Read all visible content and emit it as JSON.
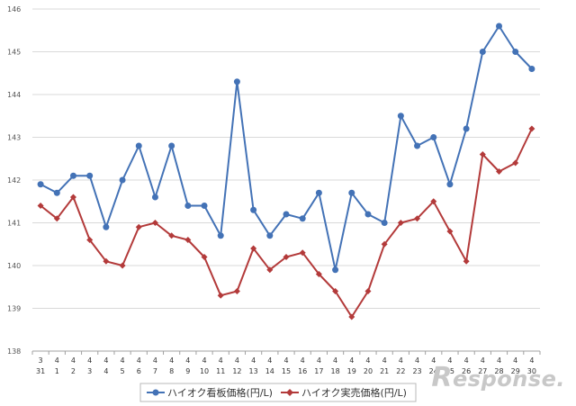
{
  "chart_data": {
    "type": "line",
    "title": "",
    "xlabel": "",
    "ylabel": "",
    "ylim": [
      138,
      146
    ],
    "y_ticks": [
      "138",
      "139",
      "140",
      "141",
      "142",
      "143",
      "144",
      "145",
      "146"
    ],
    "grid": true,
    "legend_position": "bottom-center",
    "x_months": [
      "3",
      "4",
      "4",
      "4",
      "4",
      "4",
      "4",
      "4",
      "4",
      "4",
      "4",
      "4",
      "4",
      "4",
      "4",
      "4",
      "4",
      "4",
      "4",
      "4",
      "4",
      "4",
      "4",
      "4",
      "4",
      "4",
      "4",
      "4",
      "4",
      "4",
      "4"
    ],
    "x_days": [
      "31",
      "1",
      "2",
      "3",
      "4",
      "5",
      "6",
      "7",
      "8",
      "9",
      "10",
      "11",
      "12",
      "13",
      "14",
      "15",
      "16",
      "17",
      "18",
      "19",
      "20",
      "21",
      "22",
      "23",
      "24",
      "25",
      "26",
      "27",
      "28",
      "29",
      "30"
    ],
    "series": [
      {
        "name": "ハイオク看板価格(円/L)",
        "color": "#4372b6",
        "marker": "circle",
        "values": [
          141.9,
          141.7,
          142.1,
          142.1,
          140.9,
          142.0,
          142.8,
          141.6,
          142.8,
          141.4,
          141.4,
          140.7,
          144.3,
          141.3,
          140.7,
          141.2,
          141.1,
          141.7,
          139.9,
          141.7,
          141.2,
          141.0,
          143.5,
          142.8,
          143.0,
          141.9,
          143.2,
          145.0,
          145.6,
          145.0,
          144.6
        ]
      },
      {
        "name": "ハイオク実売価格(円/L)",
        "color": "#b33a3a",
        "marker": "diamond",
        "values": [
          141.4,
          141.1,
          141.6,
          140.6,
          140.1,
          140.0,
          140.9,
          141.0,
          140.7,
          140.6,
          140.2,
          139.3,
          139.4,
          140.4,
          139.9,
          140.2,
          140.3,
          139.8,
          139.4,
          138.8,
          139.4,
          140.5,
          141.0,
          141.1,
          141.5,
          140.8,
          140.1,
          142.6,
          142.2,
          142.4,
          143.2
        ]
      }
    ]
  },
  "watermark": {
    "lead": "R",
    "rest": "esponse."
  }
}
